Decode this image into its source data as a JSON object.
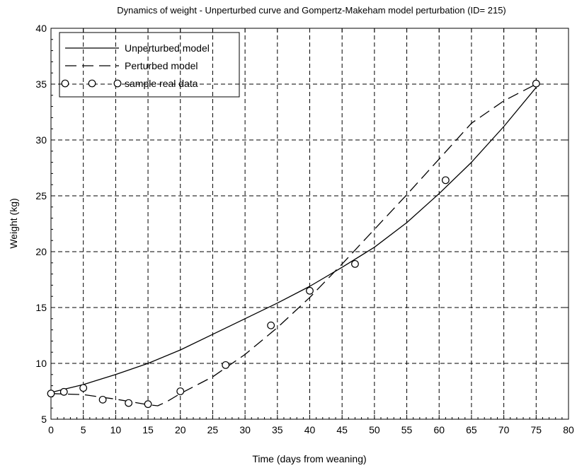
{
  "chart_data": {
    "type": "line",
    "title": "Dynamics of weight - Unperturbed curve and Gompertz-Makeham model perturbation (ID= 215)",
    "xlabel": "Time (days from weaning)",
    "ylabel": "Weight (kg)",
    "xlim": [
      0,
      80
    ],
    "ylim": [
      5,
      40
    ],
    "xticks": [
      0,
      5,
      10,
      15,
      20,
      25,
      30,
      35,
      40,
      45,
      50,
      55,
      60,
      65,
      70,
      75,
      80
    ],
    "yticks": [
      5,
      10,
      15,
      20,
      25,
      30,
      35,
      40
    ],
    "grid": true,
    "legend_position": "top-left",
    "series": [
      {
        "name": "Unperturbed model",
        "style": "solid",
        "x": [
          0,
          5,
          10,
          15,
          20,
          25,
          30,
          35,
          40,
          45,
          50,
          55,
          60,
          65,
          70,
          75
        ],
        "y": [
          7.4,
          8.1,
          9.0,
          10.0,
          11.2,
          12.6,
          14.0,
          15.4,
          16.9,
          18.6,
          20.4,
          22.6,
          25.2,
          28.0,
          31.2,
          34.7
        ]
      },
      {
        "name": "Perturbed model",
        "style": "dashed",
        "x": [
          0,
          5,
          10,
          15,
          16.5,
          18,
          20,
          25,
          30,
          35,
          40,
          45,
          50,
          55,
          60,
          65,
          70,
          75
        ],
        "y": [
          7.3,
          7.2,
          6.8,
          6.3,
          6.2,
          6.6,
          7.3,
          8.8,
          10.8,
          13.2,
          15.9,
          18.9,
          22.0,
          25.1,
          28.3,
          31.5,
          33.5,
          35.0
        ]
      },
      {
        "name": "sample real data",
        "style": "markers",
        "x": [
          0,
          2,
          5,
          8,
          12,
          15,
          20,
          27,
          34,
          40,
          47,
          61,
          75
        ],
        "y": [
          7.3,
          7.45,
          7.8,
          6.75,
          6.45,
          6.35,
          7.5,
          9.85,
          13.4,
          16.5,
          18.9,
          26.4,
          35.05
        ]
      }
    ]
  }
}
